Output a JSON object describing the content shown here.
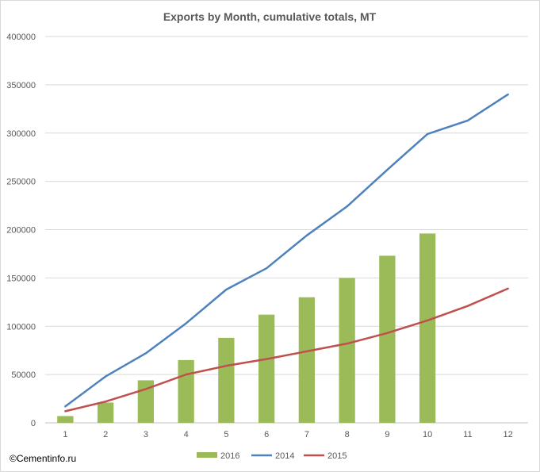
{
  "chart_data": {
    "type": "bar+line",
    "title": "Exports by Month, cumulative totals, MT",
    "x": [
      "1",
      "2",
      "3",
      "4",
      "5",
      "6",
      "7",
      "8",
      "9",
      "10",
      "11",
      "12"
    ],
    "ylim": [
      0,
      400000
    ],
    "yticks": [
      "0",
      "50000",
      "100000",
      "150000",
      "200000",
      "250000",
      "300000",
      "350000",
      "400000"
    ],
    "grid": true,
    "legend_position": "bottom",
    "series": [
      {
        "name": "2016",
        "kind": "bar",
        "color": "#9bbb59",
        "values": [
          7000,
          21000,
          44000,
          65000,
          88000,
          112000,
          130000,
          150000,
          173000,
          196000,
          null,
          null
        ]
      },
      {
        "name": "2014",
        "kind": "line",
        "color": "#4f81bd",
        "values": [
          17000,
          48000,
          72000,
          103000,
          138000,
          160000,
          194000,
          224000,
          262000,
          299000,
          313000,
          340000
        ]
      },
      {
        "name": "2015",
        "kind": "line",
        "color": "#c0504d",
        "values": [
          12000,
          22000,
          35000,
          50000,
          59000,
          66000,
          74000,
          82000,
          93000,
          106000,
          121000,
          139000
        ]
      }
    ]
  },
  "watermark": "©Cementinfo.ru"
}
